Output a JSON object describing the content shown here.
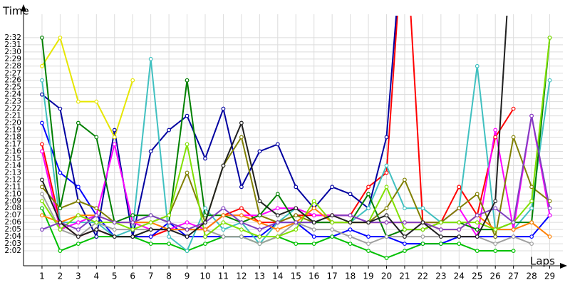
{
  "chart_data": {
    "type": "line",
    "x_label": "Laps",
    "y_label": "Time",
    "x": [
      1,
      2,
      3,
      4,
      5,
      6,
      7,
      8,
      9,
      10,
      11,
      12,
      13,
      14,
      15,
      16,
      17,
      18,
      19,
      20,
      21,
      22,
      23,
      24,
      25,
      26,
      27,
      28,
      29
    ],
    "xlim": [
      0,
      30
    ],
    "xticks": [
      1,
      2,
      3,
      4,
      5,
      6,
      7,
      8,
      9,
      10,
      11,
      12,
      13,
      14,
      15,
      16,
      17,
      18,
      19,
      20,
      21,
      22,
      23,
      24,
      25,
      26,
      27,
      28,
      29
    ],
    "ylim": [
      119.9,
      155.3
    ],
    "yticks": [
      {
        "value": 122,
        "label": "2:02"
      },
      {
        "value": 123,
        "label": "2:03"
      },
      {
        "value": 124,
        "label": "2:04"
      },
      {
        "value": 125,
        "label": "2:05"
      },
      {
        "value": 126,
        "label": "2:06"
      },
      {
        "value": 127,
        "label": "2:07"
      },
      {
        "value": 128,
        "label": "2:08"
      },
      {
        "value": 129,
        "label": "2:09"
      },
      {
        "value": 130,
        "label": "2:10"
      },
      {
        "value": 131,
        "label": "2:11"
      },
      {
        "value": 132,
        "label": "2:12"
      },
      {
        "value": 133,
        "label": "2:13"
      },
      {
        "value": 134,
        "label": "2:14"
      },
      {
        "value": 135,
        "label": "2:15"
      },
      {
        "value": 136,
        "label": "2:16"
      },
      {
        "value": 137,
        "label": "2:17"
      },
      {
        "value": 138,
        "label": "2:18"
      },
      {
        "value": 139,
        "label": "2:19"
      },
      {
        "value": 140,
        "label": "2:20"
      },
      {
        "value": 141,
        "label": "2:21"
      },
      {
        "value": 142,
        "label": "2:22"
      },
      {
        "value": 143,
        "label": "2:23"
      },
      {
        "value": 144,
        "label": "2:24"
      },
      {
        "value": 145,
        "label": "2:25"
      },
      {
        "value": 146,
        "label": "2:26"
      },
      {
        "value": 147,
        "label": "2:27"
      },
      {
        "value": 148,
        "label": "2:28"
      },
      {
        "value": 149,
        "label": "2:29"
      },
      {
        "value": 150,
        "label": "2:30"
      },
      {
        "value": 151,
        "label": "2:31"
      },
      {
        "value": 152,
        "label": "2:32"
      }
    ],
    "grid": true,
    "series": [
      {
        "color": "#ff0000",
        "values": [
          137,
          126,
          124,
          125,
          124,
          124,
          124,
          125,
          125,
          125,
          127,
          128,
          126,
          126,
          127,
          127,
          127,
          127,
          131,
          133,
          170,
          126,
          126,
          131,
          127,
          138,
          142,
          null,
          null
        ]
      },
      {
        "color": "#0000ff",
        "values": [
          140,
          133,
          131,
          127,
          124,
          124,
          124,
          126,
          124,
          124,
          124,
          124,
          124,
          126,
          126,
          124,
          124,
          125,
          124,
          124,
          123,
          123,
          123,
          124,
          124,
          124,
          124,
          124,
          127
        ]
      },
      {
        "color": "#00c000",
        "values": [
          128,
          122,
          123,
          124,
          124,
          124,
          123,
          123,
          122,
          123,
          124,
          124,
          123,
          124,
          123,
          123,
          124,
          123,
          122,
          121,
          122,
          123,
          123,
          123,
          122,
          122,
          122,
          null,
          null
        ]
      },
      {
        "color": "#0000a0",
        "values": [
          144,
          142,
          129,
          124,
          139,
          124,
          136,
          139,
          141,
          135,
          142,
          131,
          136,
          137,
          131,
          128,
          131,
          130,
          128,
          138,
          170,
          null,
          null,
          null,
          null,
          null,
          null,
          null,
          null
        ]
      },
      {
        "color": "#e6e600",
        "values": [
          148,
          152,
          143,
          143,
          138,
          146,
          null,
          null,
          null,
          null,
          null,
          null,
          null,
          null,
          null,
          null,
          null,
          null,
          null,
          null,
          null,
          null,
          null,
          null,
          null,
          null,
          null,
          null,
          null
        ]
      },
      {
        "color": "#40c0c0",
        "values": [
          146,
          126,
          126,
          126,
          124,
          125,
          149,
          124,
          122,
          128,
          125,
          126,
          123,
          126,
          128,
          126,
          126,
          126,
          128,
          134,
          128,
          128,
          126,
          128,
          148,
          125,
          125,
          128,
          146
        ]
      },
      {
        "color": "#ff00ff",
        "values": [
          136,
          125,
          126,
          127,
          137,
          126,
          125,
          125,
          126,
          125,
          127,
          127,
          127,
          128,
          128,
          127,
          127,
          127,
          126,
          126,
          126,
          126,
          126,
          128,
          124,
          139,
          125,
          141,
          127
        ]
      },
      {
        "color": "#808000",
        "values": [
          131,
          128,
          129,
          128,
          126,
          126,
          126,
          127,
          133,
          126,
          134,
          138,
          127,
          126,
          127,
          126,
          126,
          126,
          126,
          128,
          132,
          126,
          126,
          128,
          130,
          124,
          138,
          131,
          129
        ]
      },
      {
        "color": "#008000",
        "values": [
          152,
          128,
          140,
          138,
          126,
          127,
          127,
          126,
          146,
          127,
          127,
          126,
          127,
          130,
          126,
          126,
          126,
          126,
          130,
          124,
          125,
          125,
          126,
          126,
          125,
          125,
          126,
          126,
          152
        ]
      },
      {
        "color": "#a0a0a0",
        "values": [
          130,
          125,
          124,
          126,
          125,
          125,
          125,
          125,
          125,
          125,
          124,
          124,
          123,
          124,
          126,
          125,
          125,
          124,
          123,
          124,
          124,
          124,
          124,
          124,
          124,
          123,
          124,
          123,
          null
        ]
      },
      {
        "color": "#ff8000",
        "values": [
          127,
          126,
          127,
          127,
          126,
          126,
          126,
          125,
          125,
          125,
          127,
          127,
          126,
          125,
          126,
          128,
          126,
          126,
          126,
          126,
          126,
          126,
          125,
          125,
          127,
          125,
          125,
          126,
          124
        ]
      },
      {
        "color": "#80e000",
        "values": [
          129,
          125,
          127,
          126,
          126,
          125,
          126,
          127,
          137,
          124,
          126,
          125,
          124,
          124,
          125,
          129,
          126,
          126,
          126,
          131,
          125,
          125,
          126,
          126,
          126,
          125,
          126,
          129,
          152
        ]
      },
      {
        "color": "#8040c0",
        "values": [
          125,
          126,
          125,
          127,
          126,
          126,
          127,
          126,
          125,
          126,
          128,
          126,
          125,
          126,
          126,
          126,
          127,
          127,
          126,
          126,
          126,
          126,
          125,
          125,
          127,
          128,
          126,
          141,
          128
        ]
      },
      {
        "color": "#202020",
        "values": [
          132,
          126,
          124,
          125,
          124,
          124,
          125,
          125,
          124,
          126,
          134,
          140,
          129,
          127,
          128,
          126,
          127,
          126,
          126,
          127,
          124,
          126,
          124,
          124,
          124,
          129,
          170,
          null,
          null
        ]
      }
    ]
  }
}
